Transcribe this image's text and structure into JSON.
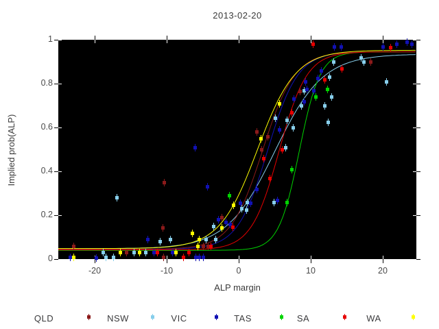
{
  "title": "2013-02-20",
  "legend": [
    {
      "label": "QLD",
      "color": "#8b1a1a"
    },
    {
      "label": "NSW",
      "color": "#87ceeb"
    },
    {
      "label": "VIC",
      "color": "#1111b3"
    },
    {
      "label": "TAS",
      "color": "#00d400"
    },
    {
      "label": "SA",
      "color": "#e60000"
    },
    {
      "label": "WA",
      "color": "#ffff00"
    }
  ],
  "chart_data": {
    "type": "scatter",
    "title": "2013-02-20",
    "xlabel": "ALP margin",
    "ylabel": "Implied prob(ALP)",
    "xlim": [
      -25.05,
      24.65
    ],
    "ylim": [
      0,
      1
    ],
    "background": "#000000",
    "grid": false,
    "legend_position": "bottom",
    "xticks": {
      "values": [
        -20,
        -10,
        0,
        10,
        20
      ],
      "labels": [
        "-20",
        "-10",
        "0",
        "10",
        "20"
      ]
    },
    "yticks": {
      "values": [
        0,
        0.2,
        0.4,
        0.6,
        0.8,
        1
      ],
      "labels": [
        "0",
        "0.2",
        "0.4",
        "0.6",
        "0.8",
        "1"
      ]
    },
    "series": [
      {
        "name": "NSW",
        "color": "#87ceeb",
        "curve": {
          "lo": 0.047,
          "hi": 0.935,
          "k": 0.3,
          "m": 5.0
        },
        "points": [
          [
            -18.9,
            0.03
          ],
          [
            -18.5,
            0.01
          ],
          [
            -17.4,
            0.01
          ],
          [
            -17.0,
            0.28
          ],
          [
            -14.6,
            0.03
          ],
          [
            -13.0,
            0.03
          ],
          [
            -11.0,
            0.08
          ],
          [
            -9.5,
            0.09
          ],
          [
            -4.6,
            0.09
          ],
          [
            -3.5,
            0.15
          ],
          [
            -3.2,
            0.09
          ],
          [
            0.4,
            0.23
          ],
          [
            1.0,
            0.225
          ],
          [
            1.1,
            0.26
          ],
          [
            4.8,
            0.26
          ],
          [
            5.0,
            0.645
          ],
          [
            6.5,
            0.51
          ],
          [
            6.7,
            0.635
          ],
          [
            7.5,
            0.6
          ],
          [
            8.7,
            0.7
          ],
          [
            9.0,
            0.77
          ],
          [
            11.9,
            0.7
          ],
          [
            12.4,
            0.625
          ],
          [
            12.6,
            0.83
          ],
          [
            12.8,
            0.74
          ],
          [
            13.1,
            0.9
          ],
          [
            16.9,
            0.92
          ],
          [
            17.3,
            0.9
          ],
          [
            20.5,
            0.81
          ]
        ]
      },
      {
        "name": "VIC",
        "color": "#1111b3",
        "curve": {
          "lo": 0.045,
          "hi": 0.945,
          "k": 0.48,
          "m": 4.0
        },
        "points": [
          [
            -23.4,
            0.01
          ],
          [
            -19.8,
            0.005
          ],
          [
            -12.7,
            0.09
          ],
          [
            -11.8,
            0.03
          ],
          [
            -9.2,
            0.03
          ],
          [
            -6.1,
            0.51
          ],
          [
            -6.0,
            0.01
          ],
          [
            -5.5,
            0.01
          ],
          [
            -5.0,
            0.01
          ],
          [
            -4.4,
            0.33
          ],
          [
            -2.9,
            0.18
          ],
          [
            -1.8,
            0.17
          ],
          [
            -1.2,
            0.16
          ],
          [
            0.2,
            0.255
          ],
          [
            1.6,
            0.255
          ],
          [
            2.5,
            0.32
          ],
          [
            5.3,
            0.27
          ],
          [
            5.6,
            0.59
          ],
          [
            7.6,
            0.73
          ],
          [
            9.0,
            0.72
          ],
          [
            9.2,
            0.81
          ],
          [
            9.4,
            0.775
          ],
          [
            10.4,
            0.77
          ],
          [
            10.9,
            0.825
          ],
          [
            11.4,
            0.86
          ],
          [
            13.2,
            0.97
          ],
          [
            14.2,
            0.97
          ],
          [
            20.0,
            0.97
          ],
          [
            21.9,
            0.98
          ],
          [
            23.3,
            0.99
          ],
          [
            24.0,
            0.98
          ]
        ]
      },
      {
        "name": "QLD",
        "color": "#8b1a1a",
        "curve": {
          "lo": 0.045,
          "hi": 0.945,
          "k": 0.45,
          "m": 3.3
        },
        "points": [
          [
            -23.0,
            0.06
          ],
          [
            -15.6,
            0.03
          ],
          [
            -10.6,
            0.145
          ],
          [
            -10.5,
            0.01
          ],
          [
            -10.4,
            0.35
          ],
          [
            -5.0,
            0.06
          ],
          [
            -4.3,
            0.06
          ],
          [
            -2.4,
            0.19
          ],
          [
            2.5,
            0.58
          ],
          [
            3.1,
            0.5
          ],
          [
            4.0,
            0.56
          ],
          [
            8.5,
            0.765
          ],
          [
            18.3,
            0.9
          ]
        ]
      },
      {
        "name": "TAS",
        "color": "#00d400",
        "curve": {
          "lo": 0.04,
          "hi": 0.945,
          "k": 0.7,
          "m": 8.4
        },
        "points": [
          [
            -1.3,
            0.29
          ],
          [
            6.7,
            0.26
          ],
          [
            7.3,
            0.41
          ],
          [
            10.7,
            0.74
          ],
          [
            12.3,
            0.775
          ]
        ]
      },
      {
        "name": "SA",
        "color": "#e60000",
        "curve": {
          "lo": 0.042,
          "hi": 0.945,
          "k": 0.52,
          "m": 5.6
        },
        "points": [
          [
            -11.3,
            0.03
          ],
          [
            -7.7,
            0.01
          ],
          [
            -7.0,
            0.03
          ],
          [
            -3.9,
            0.06
          ],
          [
            -0.9,
            0.147
          ],
          [
            3.4,
            0.46
          ],
          [
            4.3,
            0.37
          ],
          [
            6.0,
            0.5
          ],
          [
            7.3,
            0.67
          ],
          [
            10.3,
            0.98
          ],
          [
            11.9,
            0.82
          ],
          [
            14.3,
            0.87
          ],
          [
            21.0,
            0.965
          ]
        ]
      },
      {
        "name": "WA",
        "color": "#ffff00",
        "curve": {
          "lo": 0.048,
          "hi": 0.952,
          "k": 0.38,
          "m": 2.6
        },
        "points": [
          [
            -23.0,
            0.01
          ],
          [
            -16.5,
            0.03
          ],
          [
            -13.8,
            0.03
          ],
          [
            -8.8,
            0.03
          ],
          [
            -6.5,
            0.12
          ],
          [
            -5.7,
            0.06
          ],
          [
            -5.5,
            0.09
          ],
          [
            -2.4,
            0.145
          ],
          [
            -0.8,
            0.247
          ],
          [
            3.0,
            0.55
          ],
          [
            5.6,
            0.71
          ]
        ]
      }
    ]
  }
}
